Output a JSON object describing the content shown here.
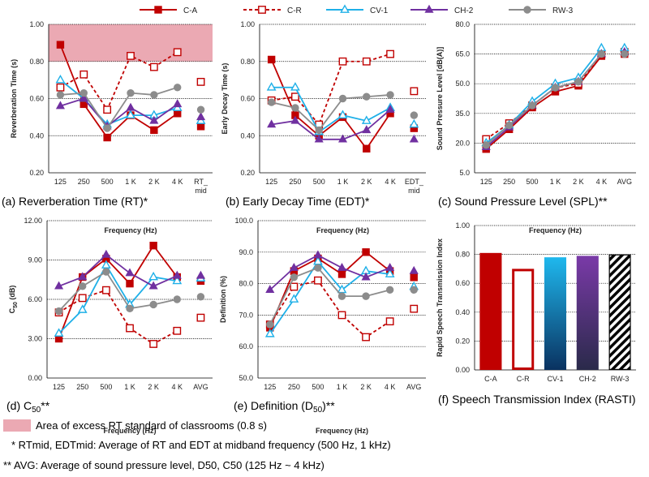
{
  "legend": {
    "series": [
      {
        "key": "CA",
        "label": "C-A",
        "color": "#c00000",
        "dash": "",
        "marker": "square-filled"
      },
      {
        "key": "CR",
        "label": "C-R",
        "color": "#c00000",
        "dash": "4,3",
        "marker": "square-open"
      },
      {
        "key": "CV1",
        "label": "CV-1",
        "color": "#1fb0e8",
        "dash": "",
        "marker": "triangle-open"
      },
      {
        "key": "CH2",
        "label": "CH-2",
        "color": "#7030a0",
        "dash": "",
        "marker": "triangle-filled"
      },
      {
        "key": "RW3",
        "label": "RW-3",
        "color": "#8c8c8c",
        "dash": "",
        "marker": "circle-filled"
      }
    ]
  },
  "chart_data": [
    {
      "id": "rt",
      "type": "line",
      "categories": [
        "125",
        "250",
        "500",
        "1 K",
        "2 K",
        "4 K"
      ],
      "summary_label": "RT_ mid",
      "xlabel": "Frequency (Hz)",
      "ylabel": "Reverberation Time (s)",
      "ylim": [
        0.2,
        1.0
      ],
      "yticks": [
        "0.20",
        "0.40",
        "0.60",
        "0.80",
        "1.00"
      ],
      "ytick_values": [
        0.2,
        0.4,
        0.6,
        0.8,
        1.0
      ],
      "grid": true,
      "shaded_above": 0.8,
      "caption": "(a) Reverberation Time (RT)*",
      "series": [
        {
          "key": "CA",
          "values": [
            0.89,
            0.57,
            0.39,
            0.51,
            0.43,
            0.52
          ],
          "summary": 0.45
        },
        {
          "key": "CR",
          "values": [
            0.66,
            0.73,
            0.54,
            0.83,
            0.77,
            0.85
          ],
          "summary": 0.69
        },
        {
          "key": "CV1",
          "values": [
            0.7,
            0.6,
            0.46,
            0.51,
            0.51,
            0.55
          ],
          "summary": 0.48
        },
        {
          "key": "CH2",
          "values": [
            0.56,
            0.6,
            0.45,
            0.55,
            0.48,
            0.57
          ],
          "summary": 0.5
        },
        {
          "key": "RW3",
          "values": [
            0.62,
            0.63,
            0.44,
            0.63,
            0.62,
            0.66
          ],
          "summary": 0.54
        }
      ]
    },
    {
      "id": "edt",
      "type": "line",
      "categories": [
        "125",
        "250",
        "500",
        "1 K",
        "2 K",
        "4 K"
      ],
      "summary_label": "EDT_ mid",
      "xlabel": "Frequency (Hz)",
      "ylabel": "Early Decay Time (s)",
      "ylim": [
        0.2,
        1.0
      ],
      "yticks": [
        "0.20",
        "0.40",
        "0.60",
        "0.80",
        "1.00"
      ],
      "ytick_values": [
        0.2,
        0.4,
        0.6,
        0.8,
        1.0
      ],
      "grid": true,
      "caption": "(b) Early Decay Time (EDT)*",
      "series": [
        {
          "key": "CA",
          "values": [
            0.81,
            0.51,
            0.4,
            0.5,
            0.33,
            0.52
          ],
          "summary": 0.44
        },
        {
          "key": "CR",
          "values": [
            0.59,
            0.61,
            0.46,
            0.8,
            0.8,
            0.84
          ],
          "summary": 0.64
        },
        {
          "key": "CV1",
          "values": [
            0.66,
            0.66,
            0.42,
            0.51,
            0.48,
            0.55
          ],
          "summary": 0.46
        },
        {
          "key": "CH2",
          "values": [
            0.46,
            0.48,
            0.38,
            0.38,
            0.43,
            0.54
          ],
          "summary": 0.38
        },
        {
          "key": "RW3",
          "values": [
            0.58,
            0.55,
            0.43,
            0.6,
            0.61,
            0.62
          ],
          "summary": 0.51
        }
      ]
    },
    {
      "id": "spl",
      "type": "line",
      "categories": [
        "125",
        "250",
        "500",
        "1 K",
        "2 K",
        "4 K"
      ],
      "summary_label": "AVG",
      "xlabel": "Frequency (Hz)",
      "ylabel": "Sound Pressure Level [dB(A)]",
      "ylim": [
        5,
        80
      ],
      "yticks": [
        "5.0",
        "20.0",
        "35.0",
        "50.0",
        "65.0",
        "80.0"
      ],
      "ytick_values": [
        5,
        20,
        35,
        50,
        65,
        80
      ],
      "grid": true,
      "caption": "(c) Sound Pressure Level (SPL)**",
      "series": [
        {
          "key": "CA",
          "values": [
            17,
            27,
            38,
            46,
            49,
            64
          ],
          "summary": 65
        },
        {
          "key": "CR",
          "values": [
            22,
            30,
            39,
            48,
            50,
            65
          ],
          "summary": 66
        },
        {
          "key": "CV1",
          "values": [
            20,
            29,
            41,
            50,
            53,
            68
          ],
          "summary": 68
        },
        {
          "key": "CH2",
          "values": [
            18,
            28,
            39,
            48,
            51,
            65
          ],
          "summary": 66
        },
        {
          "key": "RW3",
          "values": [
            19,
            29,
            39,
            48,
            51,
            65
          ],
          "summary": 65
        }
      ]
    },
    {
      "id": "c50",
      "type": "line",
      "categories": [
        "125",
        "250",
        "500",
        "1 K",
        "2 K",
        "4 K"
      ],
      "summary_label": "AVG",
      "xlabel": "Frequency (Hz)",
      "ylabel": "C50 (dB)",
      "ylim": [
        0,
        12
      ],
      "yticks": [
        "0.00",
        "3.00",
        "6.00",
        "9.00",
        "12.00"
      ],
      "ytick_values": [
        0,
        3,
        6,
        9,
        12
      ],
      "grid": true,
      "caption": "(d) C50**",
      "series": [
        {
          "key": "CA",
          "values": [
            3.0,
            7.7,
            9.1,
            7.2,
            10.1,
            7.7
          ],
          "summary": 7.4
        },
        {
          "key": "CR",
          "values": [
            5.0,
            6.1,
            6.7,
            3.8,
            2.6,
            3.6
          ],
          "summary": 4.6
        },
        {
          "key": "CV1",
          "values": [
            3.4,
            5.2,
            8.6,
            5.6,
            7.7,
            7.4
          ],
          "summary": 7.6
        },
        {
          "key": "CH2",
          "values": [
            7.0,
            7.7,
            9.4,
            8.0,
            7.0,
            7.8
          ],
          "summary": 7.8
        },
        {
          "key": "RW3",
          "values": [
            5.1,
            7.0,
            8.1,
            5.3,
            5.6,
            6.0
          ],
          "summary": 6.2
        }
      ]
    },
    {
      "id": "d50",
      "type": "line",
      "categories": [
        "125",
        "250",
        "500",
        "1 K",
        "2 K",
        "4 K"
      ],
      "summary_label": "AVG",
      "xlabel": "Frequency (Hz)",
      "ylabel": "Definition (%)",
      "ylim": [
        50,
        100
      ],
      "yticks": [
        "50.0",
        "60.0",
        "70.0",
        "80.0",
        "90.0",
        "100.0"
      ],
      "ytick_values": [
        50,
        60,
        70,
        80,
        90,
        100
      ],
      "grid": true,
      "caption": "(e) Definition (D50)**",
      "series": [
        {
          "key": "CA",
          "values": [
            66,
            84,
            88,
            83,
            90,
            84
          ],
          "summary": 82
        },
        {
          "key": "CR",
          "values": [
            67,
            79,
            81,
            70,
            63,
            68
          ],
          "summary": 72
        },
        {
          "key": "CV1",
          "values": [
            64,
            75,
            87,
            78,
            84,
            83
          ],
          "summary": 79
        },
        {
          "key": "CH2",
          "values": [
            78,
            85,
            89,
            85,
            82,
            85
          ],
          "summary": 84
        },
        {
          "key": "RW3",
          "values": [
            67,
            82,
            85,
            76,
            76,
            78
          ],
          "summary": 78
        }
      ]
    },
    {
      "id": "rasti",
      "type": "bar",
      "categories": [
        "C-A",
        "C-R",
        "CV-1",
        "CH-2",
        "RW-3"
      ],
      "values": [
        0.81,
        0.7,
        0.78,
        0.79,
        0.8
      ],
      "xlabel": "",
      "ylabel": "Rapid Speech Transmission Index",
      "ylim": [
        0,
        1
      ],
      "yticks": [
        "0.00",
        "0.20",
        "0.40",
        "0.60",
        "0.80",
        "1.00"
      ],
      "ytick_values": [
        0,
        0.2,
        0.4,
        0.6,
        0.8,
        1.0
      ],
      "grid": true,
      "caption": "(f) Speech Transmission Index (RASTI)"
    }
  ],
  "notes": {
    "shade_label": "Area of excess RT standard of classrooms (0.8 s)",
    "rt_mid": "* RTmid, EDTmid: Average of RT and EDT at midband frequency (500 Hz, 1 kHz)",
    "avg": "** AVG: Average of sound pressure level, D50, C50 (125 Hz ~ 4 kHz)"
  },
  "colors": {
    "shade": "#eba9b3",
    "grid": "#000000"
  }
}
